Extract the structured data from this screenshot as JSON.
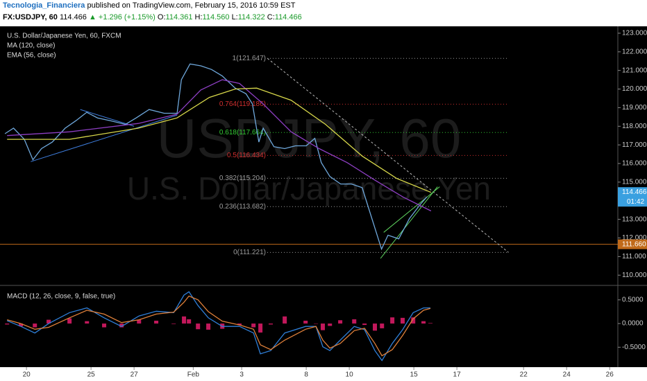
{
  "header": {
    "author": "Tecnologia_Financiera",
    "published": "published on TradingView.com, February 15, 2016 10:59 EST",
    "symbol": "FX:USDJPY, 60",
    "last": "114.466",
    "change": "▲ +1.296 (+1.15%)",
    "ohlc": [
      {
        "label": "O:",
        "value": "114.361"
      },
      {
        "label": "H:",
        "value": "114.560"
      },
      {
        "label": "L:",
        "value": "114.322"
      },
      {
        "label": "C:",
        "value": "114.466"
      }
    ]
  },
  "chart_data": {
    "type": "line",
    "title": "U.S. Dollar/Japanese Yen, 60, FXCM",
    "watermark": {
      "symbol": "USDJPY, 60",
      "name": "U.S. Dollar/Japanese Yen"
    },
    "xlim": [
      -1.23,
      27.48
    ],
    "xticks": [
      {
        "value": 0,
        "label": "20"
      },
      {
        "value": 3,
        "label": "25"
      },
      {
        "value": 5,
        "label": "27"
      },
      {
        "value": 7.75,
        "label": "Feb"
      },
      {
        "value": 10,
        "label": "3"
      },
      {
        "value": 13,
        "label": "8"
      },
      {
        "value": 15,
        "label": "10"
      },
      {
        "value": 18,
        "label": "15"
      },
      {
        "value": 20,
        "label": "17"
      },
      {
        "value": 23.1,
        "label": "22"
      },
      {
        "value": 25.1,
        "label": "24"
      },
      {
        "value": 27.1,
        "label": "26"
      }
    ],
    "ylim": [
      109.45,
      123.37
    ],
    "yticks": [
      {
        "value": 110,
        "label": "110.000"
      },
      {
        "value": 111,
        "label": "111.000"
      },
      {
        "value": 112,
        "label": "112.000"
      },
      {
        "value": 113,
        "label": "113.000"
      },
      {
        "value": 114,
        "label": "114.000"
      },
      {
        "value": 115,
        "label": "115.000"
      },
      {
        "value": 116,
        "label": "116.000"
      },
      {
        "value": 117,
        "label": "117.000"
      },
      {
        "value": 118,
        "label": "118.000"
      },
      {
        "value": 119,
        "label": "119.000"
      },
      {
        "value": 120,
        "label": "120.000"
      },
      {
        "value": 121,
        "label": "121.000"
      },
      {
        "value": 122,
        "label": "122.000"
      },
      {
        "value": 123,
        "label": "123.000"
      }
    ],
    "series": [
      {
        "color": "#6fa8dc",
        "x": [
          -1,
          -0.6,
          -0.1,
          0.3,
          0.7,
          1.2,
          1.8,
          2.3,
          2.8,
          3.3,
          3.9,
          4.6,
          5.1,
          5.7,
          6.4,
          7.0,
          7.2,
          7.6,
          8.1,
          8.6,
          9.1,
          9.7,
          10.2,
          10.5,
          10.8,
          11.0,
          11.5,
          12.0,
          12.5,
          13.0,
          13.4,
          13.7,
          14.1,
          14.6,
          15.1,
          15.6,
          15.9,
          16.2,
          16.5,
          16.8,
          17.3,
          17.8,
          18.3,
          18.6
        ],
        "values": [
          117.6,
          117.9,
          117.3,
          116.2,
          116.8,
          117.15,
          117.9,
          118.3,
          118.75,
          118.45,
          118.3,
          118.1,
          118.45,
          118.9,
          118.7,
          118.7,
          120.5,
          121.35,
          121.25,
          121.05,
          120.7,
          120.05,
          119.75,
          119.2,
          117.15,
          117.9,
          116.9,
          116.8,
          116.95,
          116.95,
          117.35,
          116.05,
          115.3,
          114.9,
          114.9,
          114.7,
          113.6,
          112.5,
          111.4,
          112.15,
          111.95,
          113.05,
          113.8,
          114.2
        ]
      },
      {
        "name": "MA (120, close)",
        "color": "#8e3fc4",
        "x": [
          -0.9,
          2.0,
          5.2,
          7.0,
          8.1,
          9.1,
          9.9,
          11.0,
          12.3,
          13.6,
          14.9,
          16.2,
          17.5,
          18.8
        ],
        "values": [
          117.5,
          117.7,
          118.15,
          118.65,
          119.95,
          120.5,
          120.3,
          119.2,
          117.7,
          116.8,
          116.05,
          115.1,
          114.2,
          113.45
        ]
      },
      {
        "name": "EMA (56, close)",
        "color": "#d8d84a",
        "x": [
          -0.9,
          2.0,
          5.2,
          7.0,
          8.5,
          9.7,
          10.7,
          12.3,
          13.9,
          15.6,
          17.2,
          18.8
        ],
        "values": [
          117.3,
          117.3,
          117.9,
          118.45,
          119.55,
          120.0,
          120.05,
          119.4,
          118.1,
          116.4,
          115.2,
          114.45
        ]
      }
    ],
    "fib_range": [
      11.19,
      22.39
    ],
    "fib_levels": [
      {
        "label": "1(121.647)",
        "value": 121.647,
        "color": "#9e9e9e"
      },
      {
        "label": "0.764(119.186)",
        "value": 119.186,
        "color": "#d32f2f"
      },
      {
        "label": "0.618(117.664)",
        "value": 117.664,
        "color": "#33cc33"
      },
      {
        "label": "0.5(116.434)",
        "value": 116.434,
        "color": "#d32f2f"
      },
      {
        "label": "0.382(115.204)",
        "value": 115.204,
        "color": "#9e9e9e"
      },
      {
        "label": "0.236(113.682)",
        "value": 113.682,
        "color": "#9e9e9e"
      },
      {
        "label": "0(111.221)",
        "value": 111.221,
        "color": "#9e9e9e"
      }
    ],
    "trendlines": [
      {
        "color": "#bbbbbb",
        "dash": true,
        "points": [
          [
            11.2,
            121.647
          ],
          [
            22.4,
            111.221
          ]
        ]
      },
      {
        "color": "#5fd35f",
        "dash": false,
        "points": [
          [
            16.45,
            110.9
          ],
          [
            19.1,
            114.75
          ]
        ]
      },
      {
        "color": "#5fd35f",
        "dash": false,
        "points": [
          [
            16.6,
            112.3
          ],
          [
            19.2,
            114.75
          ]
        ]
      },
      {
        "color": "#3f7fe0",
        "dash": false,
        "points": [
          [
            0.2,
            116.1
          ],
          [
            7.0,
            118.6
          ]
        ]
      },
      {
        "color": "#3f7fe0",
        "dash": false,
        "points": [
          [
            2.5,
            118.9
          ],
          [
            5.0,
            118.0
          ]
        ]
      }
    ],
    "hline": {
      "value": 111.66,
      "label": "111.660",
      "color": "#c06a1a"
    },
    "last_price": {
      "value": 114.466,
      "label": "114.466",
      "countdown": "01:42",
      "color": "#3aa0e0"
    },
    "macd": {
      "title": "MACD (12, 26, close, 9, false, true)",
      "ylim": [
        -0.92,
        0.79
      ],
      "yticks": [
        {
          "value": 0.5,
          "label": "0.5000"
        },
        {
          "value": 0,
          "label": "0.0000"
        },
        {
          "value": -0.5,
          "label": "-0.5000"
        }
      ],
      "x": [
        -0.9,
        -0.26,
        0.39,
        1.03,
        2.0,
        2.81,
        3.61,
        4.42,
        5.23,
        6.03,
        6.84,
        7.32,
        7.55,
        7.97,
        8.45,
        9.1,
        9.9,
        10.55,
        10.87,
        11.35,
        12.0,
        12.97,
        13.45,
        13.77,
        14.1,
        14.58,
        15.23,
        15.71,
        16.19,
        16.52,
        17.0,
        17.48,
        17.97,
        18.45,
        18.77
      ],
      "series": [
        {
          "color": "#2f7fd8",
          "values": [
            0.06,
            -0.06,
            -0.2,
            0.0,
            0.23,
            0.33,
            0.12,
            -0.06,
            0.16,
            0.26,
            0.23,
            0.6,
            0.67,
            0.38,
            0.12,
            -0.06,
            -0.06,
            -0.2,
            -0.64,
            -0.57,
            -0.2,
            -0.06,
            -0.06,
            -0.49,
            -0.57,
            -0.35,
            -0.06,
            -0.13,
            -0.57,
            -0.78,
            -0.42,
            -0.13,
            0.23,
            0.33,
            0.33
          ]
        },
        {
          "color": "#e0803a",
          "values": [
            0.08,
            0.0,
            -0.12,
            -0.08,
            0.12,
            0.28,
            0.2,
            0.02,
            0.08,
            0.2,
            0.24,
            0.45,
            0.58,
            0.5,
            0.25,
            0.05,
            -0.03,
            -0.12,
            -0.45,
            -0.55,
            -0.35,
            -0.12,
            -0.06,
            -0.35,
            -0.52,
            -0.42,
            -0.15,
            -0.1,
            -0.42,
            -0.68,
            -0.55,
            -0.25,
            0.1,
            0.28,
            0.32
          ]
        }
      ],
      "histogram": {
        "color": "#c2185b",
        "values": [
          -0.02,
          -0.06,
          -0.08,
          0.08,
          0.11,
          0.05,
          -0.08,
          -0.08,
          0.08,
          0.06,
          -0.01,
          0.15,
          0.09,
          -0.12,
          -0.13,
          -0.11,
          -0.03,
          -0.08,
          -0.19,
          -0.02,
          0.15,
          0.06,
          0,
          -0.14,
          -0.05,
          0.07,
          0.09,
          -0.03,
          -0.15,
          -0.1,
          0.13,
          0.12,
          0.13,
          0.05,
          0.01
        ]
      }
    }
  }
}
